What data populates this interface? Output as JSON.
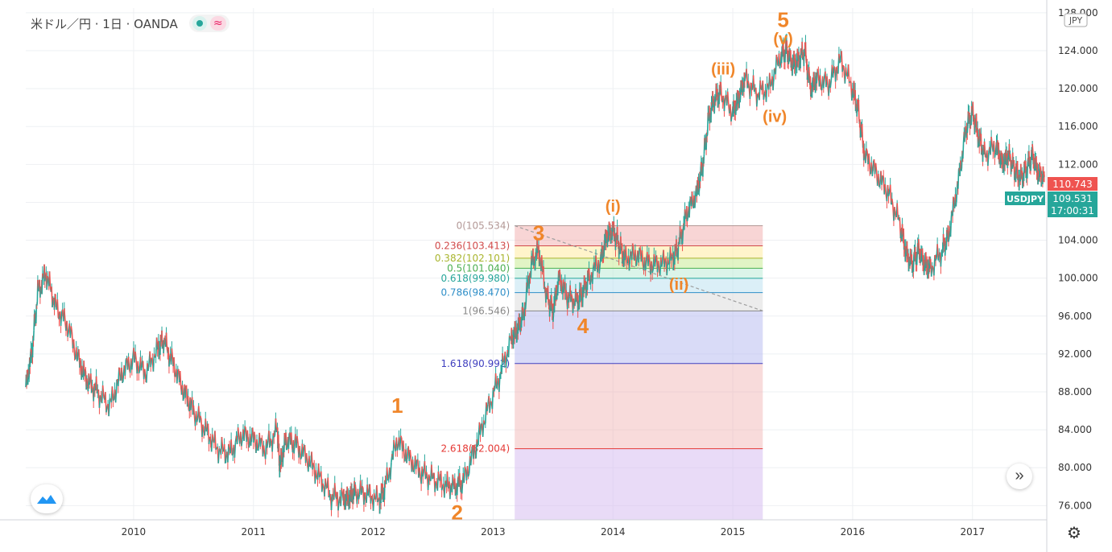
{
  "header": {
    "title": "米ドル／円 · 1日 · OANDA"
  },
  "currency_label": "JPY",
  "price_tags": [
    {
      "text": "110.743",
      "color": "#ef5350"
    },
    {
      "text": "USDJPY",
      "color": "#26a69a"
    },
    {
      "text": "109.531",
      "color": "#26a69a"
    },
    {
      "text": "17:00:31",
      "color": "#26a69a"
    }
  ],
  "colors": {
    "up": "#26a69a",
    "down": "#ef5350",
    "wave_label": "#f0862a",
    "grid": "#eef0f3"
  },
  "icons": [
    "circle-dot-icon",
    "wave-icon",
    "forward-icon",
    "tradingview-logo-icon",
    "gear-icon"
  ],
  "chart_data": {
    "type": "line",
    "x_tick_labels": [
      "2010",
      "2011",
      "2012",
      "2013",
      "2014",
      "2015",
      "2016",
      "2017"
    ],
    "y_tick_labels": [
      "76.000",
      "80.000",
      "84.000",
      "88.000",
      "92.000",
      "96.000",
      "100.000",
      "104.000",
      "108.000",
      "112.000",
      "116.000",
      "120.000",
      "124.000",
      "128.000"
    ],
    "ylim": [
      74.5,
      128.5
    ],
    "xlim": [
      2009.1,
      2017.62
    ],
    "grid": true,
    "series": [
      {
        "x": [
          2009.1,
          2009.15,
          2009.2,
          2009.27,
          2009.35,
          2009.45,
          2009.55,
          2009.62,
          2009.7,
          2009.8,
          2009.9,
          2010.0,
          2010.1,
          2010.2,
          2010.25,
          2010.33,
          2010.42,
          2010.5,
          2010.6,
          2010.7,
          2010.8,
          2010.9,
          2011.0,
          2011.1,
          2011.2,
          2011.22,
          2011.27,
          2011.35,
          2011.45,
          2011.55,
          2011.65,
          2011.75,
          2011.8,
          2011.85,
          2011.95,
          2012.05,
          2012.1,
          2012.2,
          2012.3,
          2012.4,
          2012.5,
          2012.6,
          2012.68,
          2012.75,
          2012.85,
          2012.95,
          2013.05,
          2013.15,
          2013.2,
          2013.25,
          2013.32,
          2013.38,
          2013.45,
          2013.5,
          2013.55,
          2013.62,
          2013.7,
          2013.75,
          2013.8,
          2013.9,
          2013.95,
          2014.0,
          2014.05,
          2014.1,
          2014.2,
          2014.3,
          2014.4,
          2014.5,
          2014.55,
          2014.62,
          2014.7,
          2014.75,
          2014.8,
          2014.85,
          2014.9,
          2015.0,
          2015.05,
          2015.1,
          2015.2,
          2015.3,
          2015.4,
          2015.45,
          2015.5,
          2015.55,
          2015.6,
          2015.65,
          2015.7,
          2015.8,
          2015.9,
          2016.0,
          2016.05,
          2016.1,
          2016.2,
          2016.3,
          2016.4,
          2016.45,
          2016.5,
          2016.55,
          2016.6,
          2016.65,
          2016.75,
          2016.8,
          2016.88,
          2016.95,
          2017.0,
          2017.05,
          2017.1,
          2017.2,
          2017.25,
          2017.3,
          2017.35,
          2017.4,
          2017.45,
          2017.5,
          2017.55,
          2017.6
        ],
        "y": [
          88.5,
          92.0,
          98.5,
          100.5,
          97.0,
          95.0,
          91.0,
          89.0,
          88.0,
          86.5,
          90.0,
          91.5,
          90.0,
          92.5,
          93.5,
          91.0,
          88.0,
          86.0,
          84.0,
          82.0,
          81.5,
          83.5,
          83.0,
          82.0,
          84.0,
          80.0,
          83.0,
          82.5,
          81.0,
          79.0,
          77.0,
          76.7,
          76.8,
          77.5,
          77.2,
          76.5,
          78.0,
          83.0,
          81.0,
          79.5,
          78.8,
          78.2,
          78.0,
          78.5,
          82.0,
          86.0,
          89.5,
          93.5,
          94.5,
          96.0,
          101.5,
          103.0,
          98.0,
          96.5,
          100.0,
          98.0,
          97.5,
          98.5,
          100.0,
          102.0,
          104.5,
          105.0,
          103.5,
          102.0,
          102.5,
          101.5,
          101.5,
          102.0,
          103.5,
          107.0,
          109.0,
          112.0,
          117.0,
          119.0,
          119.5,
          117.5,
          119.0,
          121.0,
          119.5,
          120.0,
          123.5,
          124.0,
          122.5,
          123.0,
          124.0,
          120.0,
          121.0,
          120.5,
          123.0,
          120.0,
          117.5,
          113.0,
          111.0,
          109.0,
          105.5,
          102.5,
          101.5,
          103.0,
          101.5,
          101.0,
          103.0,
          104.5,
          110.0,
          116.0,
          117.5,
          115.0,
          113.0,
          114.0,
          112.0,
          113.0,
          111.5,
          110.5,
          111.5,
          113.0,
          111.0,
          110.7
        ]
      }
    ],
    "fibonacci": {
      "x_range": [
        2013.18,
        2015.25
      ],
      "levels": [
        {
          "label": "0(105.534)",
          "price": 105.534,
          "color": "#b39896",
          "fill": "rgba(239,154,154,0.42)"
        },
        {
          "label": "0.236(103.413)",
          "price": 103.413,
          "color": "#d14a4a",
          "fill": "rgba(255,235,160,0.55)"
        },
        {
          "label": "0.382(102.101)",
          "price": 102.101,
          "color": "#a9b52e",
          "fill": "rgba(200,235,150,0.55)"
        },
        {
          "label": "0.5(101.040)",
          "price": 101.04,
          "color": "#4caf50",
          "fill": "rgba(190,235,215,0.55)"
        },
        {
          "label": "0.618(99.980)",
          "price": 99.98,
          "color": "#26a69a",
          "fill": "rgba(190,225,240,0.55)"
        },
        {
          "label": "0.786(98.470)",
          "price": 98.47,
          "color": "#2f8fc8",
          "fill": "rgba(220,220,220,0.55)"
        },
        {
          "label": "1(96.546)",
          "price": 96.546,
          "color": "#888888",
          "fill": "rgba(185,190,240,0.55)"
        },
        {
          "label": "1.618(90.992)",
          "price": 90.992,
          "color": "#3f3fbf",
          "fill": "rgba(239,170,170,0.42)"
        },
        {
          "label": "2.618(82.004)",
          "price": 82.004,
          "color": "#e53935",
          "fill": "rgba(215,190,240,0.55)"
        }
      ],
      "trend_line": [
        [
          2013.18,
          105.534
        ],
        [
          2015.25,
          96.546
        ]
      ]
    },
    "annotations": [
      {
        "text": "1",
        "x": 2012.2,
        "y": 85.8,
        "size": 26
      },
      {
        "text": "2",
        "x": 2012.7,
        "y": 74.5,
        "size": 26
      },
      {
        "text": "3",
        "x": 2013.38,
        "y": 104.0,
        "size": 26
      },
      {
        "text": "4",
        "x": 2013.75,
        "y": 94.2,
        "size": 26
      },
      {
        "text": "5",
        "x": 2015.42,
        "y": 126.5,
        "size": 26
      },
      {
        "text": "(i)",
        "x": 2014.0,
        "y": 107.0,
        "size": 20
      },
      {
        "text": "(ii)",
        "x": 2014.55,
        "y": 98.8,
        "size": 20
      },
      {
        "text": "(iii)",
        "x": 2014.92,
        "y": 121.5,
        "size": 20
      },
      {
        "text": "(iv)",
        "x": 2015.35,
        "y": 116.5,
        "size": 20
      },
      {
        "text": "(v)",
        "x": 2015.42,
        "y": 124.7,
        "size": 20
      }
    ]
  }
}
